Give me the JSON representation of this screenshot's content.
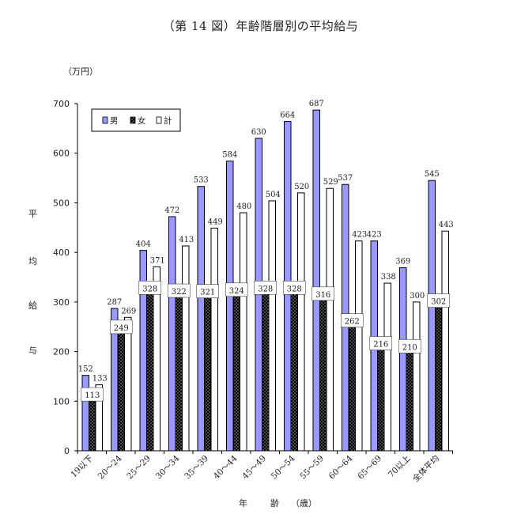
{
  "title": "（第 14 図）年齢階層別の平均給与",
  "unit": "（万円）",
  "ylabel": [
    "平",
    "均",
    "給",
    "与"
  ],
  "xlabel": [
    "年",
    "齢",
    "（歳）"
  ],
  "chart_data": {
    "type": "bar",
    "categories": [
      "19以下",
      "20～24",
      "25～29",
      "30～34",
      "35～39",
      "40～44",
      "45～49",
      "50～54",
      "55～59",
      "60～64",
      "65～69",
      "70以上",
      "全体平均"
    ],
    "series": [
      {
        "name": "男",
        "color": "#9999ff",
        "values": [
          152,
          287,
          404,
          472,
          533,
          584,
          630,
          664,
          687,
          537,
          423,
          369,
          545
        ]
      },
      {
        "name": "女",
        "color": "#000000",
        "values": [
          113,
          249,
          328,
          322,
          321,
          324,
          328,
          328,
          316,
          262,
          216,
          210,
          302
        ]
      },
      {
        "name": "計",
        "color": "#ffffff",
        "values": [
          133,
          269,
          371,
          413,
          449,
          480,
          504,
          520,
          529,
          423,
          338,
          300,
          443
        ]
      }
    ],
    "ylim": [
      0,
      700
    ],
    "yticks": [
      0,
      100,
      200,
      300,
      400,
      500,
      600,
      700
    ],
    "legend": "top-left",
    "grid": false
  }
}
